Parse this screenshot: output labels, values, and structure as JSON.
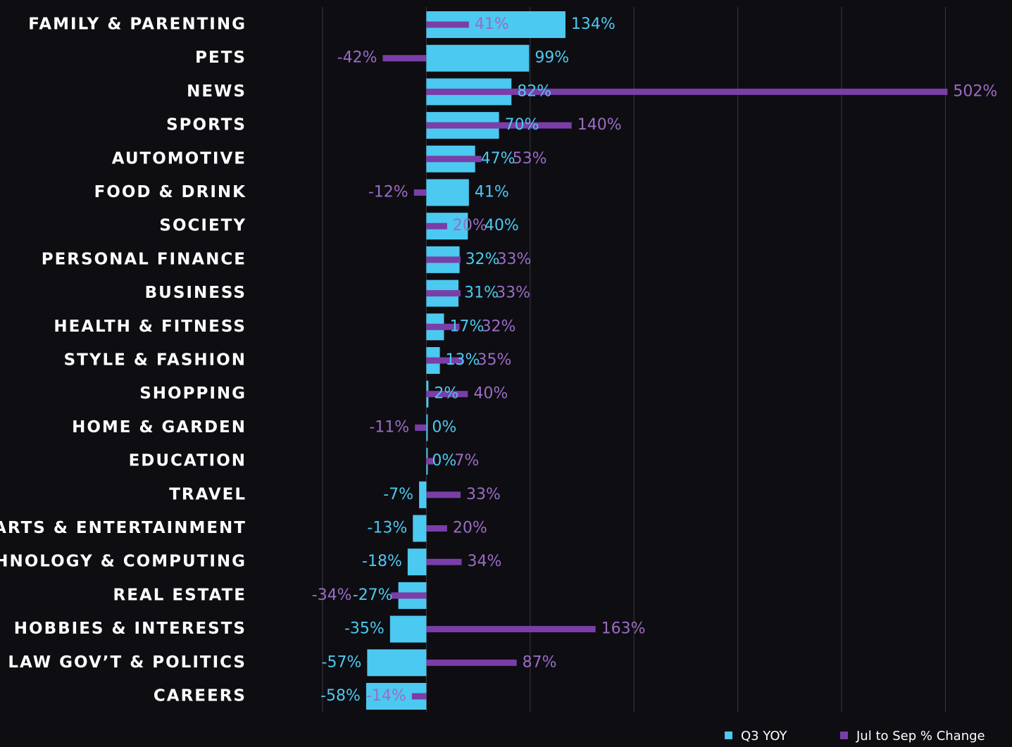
{
  "chart_data": {
    "type": "hbar",
    "categories": [
      "FAMILY & PARENTING",
      "PETS",
      "NEWS",
      "SPORTS",
      "AUTOMOTIVE",
      "FOOD & DRINK",
      "SOCIETY",
      "PERSONAL FINANCE",
      "BUSINESS",
      "HEALTH & FITNESS",
      "STYLE & FASHION",
      "SHOPPING",
      "HOME & GARDEN",
      "EDUCATION",
      "TRAVEL",
      "ARTS & ENTERTAINMENT",
      "TECHNOLOGY & COMPUTING",
      "REAL ESTATE",
      "HOBBIES & INTERESTS",
      "LAW GOV’T & POLITICS",
      "CAREERS"
    ],
    "series": [
      {
        "name": "Q3 YOY",
        "color": "#4cc9f0",
        "values": [
          134,
          99,
          82,
          70,
          47,
          41,
          40,
          32,
          31,
          17,
          13,
          2,
          0,
          0,
          -7,
          -13,
          -18,
          -27,
          -35,
          -57,
          -58
        ],
        "value_labels": [
          "134%",
          "99%",
          "82%",
          "70%",
          "47%",
          "41%",
          "40%",
          "32%",
          "31%",
          "17%",
          "13%",
          "2%",
          "0%",
          "0%",
          "-7%",
          "-13%",
          "-18%",
          "-27%",
          "-35%",
          "-57%",
          "-58%"
        ]
      },
      {
        "name": "Jul to Sep % Change",
        "color": "#7a3ea8",
        "values": [
          41,
          -42,
          502,
          140,
          53,
          -12,
          20,
          33,
          33,
          32,
          35,
          40,
          -11,
          7,
          33,
          20,
          34,
          -34,
          163,
          87,
          -14
        ],
        "value_labels": [
          "41%",
          "-42%",
          "502%",
          "140%",
          "53%",
          "-12%",
          "20%",
          "33%",
          "33%",
          "32%",
          "35%",
          "40%",
          "-11%",
          "7%",
          "33%",
          "20%",
          "34%",
          "-34%",
          "163%",
          "87%",
          "-14%"
        ]
      }
    ],
    "xlim": [
      -100,
      520
    ],
    "xticks": [
      -100,
      0,
      100,
      200,
      300,
      400,
      500
    ],
    "grid": true
  }
}
